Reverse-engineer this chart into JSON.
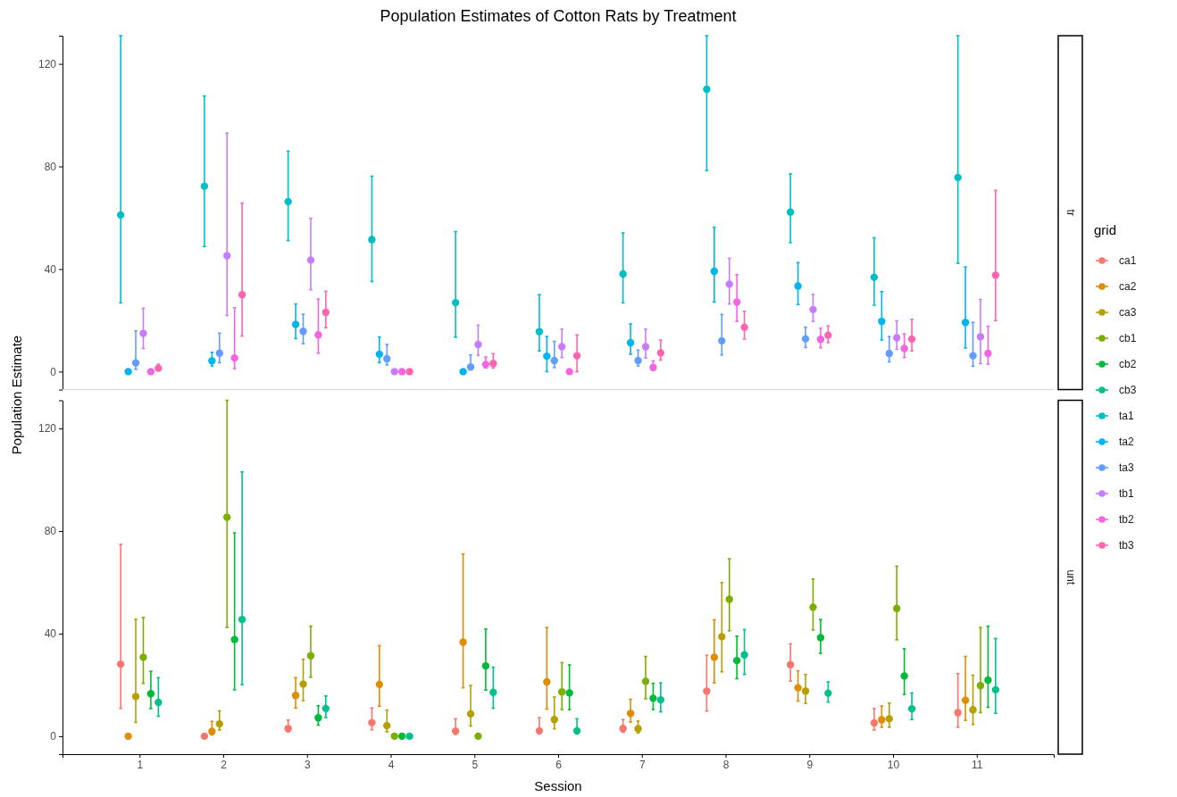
{
  "chart_data": [
    {
      "type": "scatter",
      "title": "Population Estimates of Cotton Rats by Treatment",
      "annotations": [
        "tr"
      ],
      "ylabel": "Population Estimate",
      "legend_title": "grid",
      "legend": "right",
      "marker": "circle",
      "tick_labels": "y",
      "categories": [
        "1",
        "2",
        "3",
        "4",
        "5",
        "6",
        "7",
        "8",
        "9",
        "10",
        "11"
      ],
      "ylim": [
        -7,
        131
      ],
      "yticks": [
        0,
        40,
        80,
        120
      ],
      "series": [
        {
          "name": "ta1",
          "color": "#00bfc4",
          "values": [
            61.1,
            72.3,
            66.3,
            51.5,
            26.9,
            15.6,
            38.1,
            110.1,
            62.2,
            36.8,
            75.7
          ],
          "errors": [
            [
              26.8,
              131
            ],
            [
              48.8,
              107.5
            ],
            [
              51.1,
              86.0
            ],
            [
              35.1,
              76.2
            ],
            [
              13.4,
              54.6
            ],
            [
              8.1,
              30.0
            ],
            [
              26.8,
              54.1
            ],
            [
              78.4,
              131
            ],
            [
              50.3,
              77.1
            ],
            [
              25.9,
              52.2
            ],
            [
              42.2,
              131
            ]
          ]
        },
        {
          "name": "ta2",
          "color": "#00b4f0",
          "values": [
            0,
            4.2,
            18.4,
            6.8,
            0,
            6.0,
            11.3,
            39.1,
            33.4,
            19.6,
            19.2
          ],
          "errors": [
            null,
            [
              2.2,
              7.5
            ],
            [
              12.9,
              26.4
            ],
            [
              3.5,
              13.5
            ],
            null,
            [
              0,
              13.7
            ],
            [
              6.8,
              18.6
            ],
            [
              27.1,
              56.3
            ],
            [
              26.2,
              42.5
            ],
            [
              12.3,
              31.2
            ],
            [
              9.2,
              40.8
            ]
          ]
        },
        {
          "name": "ta3",
          "color": "#619cff",
          "values": [
            3.4,
            7.2,
            15.7,
            5.0,
            1.8,
            4.3,
            4.3,
            12.0,
            12.8,
            7.1,
            6.2
          ],
          "errors": [
            [
              0.9,
              15.9
            ],
            [
              3.5,
              15
            ],
            [
              10.9,
              22.4
            ],
            [
              2.6,
              10.6
            ],
            [
              0.9,
              6.5
            ],
            [
              1.6,
              11.8
            ],
            [
              2.2,
              8.4
            ],
            [
              6.5,
              22.3
            ],
            [
              9.4,
              17.3
            ],
            [
              3.8,
              13.7
            ],
            [
              2.1,
              19.2
            ]
          ]
        },
        {
          "name": "tb1",
          "color": "#c77cff",
          "values": [
            14.9,
            45.2,
            43.5,
            0,
            10.6,
            9.7,
            9.7,
            34.1,
            24.2,
            13.2,
            13.6
          ],
          "errors": [
            [
              9.0,
              24.7
            ],
            [
              21.9,
              93.0
            ],
            [
              31.9,
              59.8
            ],
            null,
            [
              6.3,
              18.1
            ],
            [
              5.5,
              16.6
            ],
            [
              5.3,
              16.6
            ],
            [
              26.4,
              44.2
            ],
            [
              19.6,
              30.1
            ],
            [
              8.7,
              19.8
            ],
            [
              3.1,
              28.1
            ]
          ]
        },
        {
          "name": "tb2",
          "color": "#f564e3",
          "values": [
            0,
            5.3,
            14.3,
            0,
            2.8,
            0,
            1.6,
            27.1,
            12.6,
            9.0,
            7.1
          ],
          "errors": [
            null,
            [
              1.2,
              24.9
            ],
            [
              7.2,
              28.3
            ],
            null,
            [
              1.4,
              5.7
            ],
            null,
            [
              0.5,
              4.2
            ],
            [
              19.6,
              37.8
            ],
            [
              9.3,
              16.9
            ],
            [
              5.5,
              14.7
            ],
            [
              2.9,
              17.7
            ]
          ]
        },
        {
          "name": "tb3",
          "color": "#ff64b0",
          "values": [
            1.3,
            30.0,
            23.1,
            0,
            3.2,
            6.2,
            7.3,
            17.3,
            14.2,
            12.7,
            37.6
          ],
          "errors": [
            [
              0.5,
              2.9
            ],
            [
              13.9,
              65.7
            ],
            [
              17.1,
              31.3
            ],
            null,
            [
              1.4,
              7.0
            ],
            [
              0,
              14.3
            ],
            [
              4.5,
              12.3
            ],
            [
              12.7,
              23.5
            ],
            [
              11.3,
              17.8
            ],
            [
              8.1,
              20.4
            ],
            [
              19.9,
              70.7
            ]
          ]
        }
      ]
    },
    {
      "type": "scatter",
      "annotations": [
        "unt"
      ],
      "xlabel": "Session",
      "legend": "right",
      "marker": "circle",
      "categories": [
        "1",
        "2",
        "3",
        "4",
        "5",
        "6",
        "7",
        "8",
        "9",
        "10",
        "11"
      ],
      "ylim": [
        -7,
        131
      ],
      "yticks": [
        0,
        40,
        80,
        120
      ],
      "series": [
        {
          "name": "ca1",
          "color": "#f8766d",
          "values": [
            28.1,
            0,
            3.0,
            5.3,
            2.0,
            2.1,
            3.0,
            17.6,
            27.9,
            5.2,
            9.2
          ],
          "errors": [
            [
              10.8,
              74.8
            ],
            null,
            [
              1.7,
              6.3
            ],
            [
              2.5,
              11.0
            ],
            [
              0.7,
              6.8
            ],
            [
              0.9,
              7.2
            ],
            [
              1.6,
              6.5
            ],
            [
              9.8,
              31.6
            ],
            [
              21.5,
              36.0
            ],
            [
              2.4,
              10.8
            ],
            [
              3.5,
              24.4
            ]
          ]
        },
        {
          "name": "ca2",
          "color": "#de8c00",
          "values": [
            0,
            1.9,
            15.9,
            20.2,
            36.7,
            21.2,
            8.9,
            30.8,
            18.9,
            6.4,
            14.0
          ],
          "errors": [
            null,
            [
              0.5,
              5.8
            ],
            [
              11.0,
              22.8
            ],
            [
              11.7,
              35.3
            ],
            [
              18.9,
              71.1
            ],
            [
              10.6,
              42.4
            ],
            [
              5.5,
              14.4
            ],
            [
              20.8,
              45.4
            ],
            [
              13.7,
              25.5
            ],
            [
              3.5,
              11.8
            ],
            [
              6.2,
              31.1
            ]
          ]
        },
        {
          "name": "ca3",
          "color": "#b79f00",
          "values": [
            15.5,
            4.8,
            20.3,
            4.1,
            8.7,
            6.5,
            2.9,
            38.8,
            17.6,
            6.8,
            10.3
          ],
          "errors": [
            [
              5.4,
              45.6
            ],
            [
              2.4,
              9.9
            ],
            [
              13.9,
              30.0
            ],
            [
              1.7,
              10.2
            ],
            [
              4.0,
              19.8
            ],
            [
              2.9,
              15.3
            ],
            [
              1.3,
              5.9
            ],
            [
              25.1,
              59.9
            ],
            [
              12.8,
              24.1
            ],
            [
              3.5,
              12.9
            ],
            [
              4.6,
              23.8
            ]
          ]
        },
        {
          "name": "cb1",
          "color": "#7cae00",
          "values": [
            30.8,
            85.4,
            31.4,
            0,
            0,
            17.3,
            21.4,
            53.4,
            50.3,
            49.8,
            19.7
          ],
          "errors": [
            [
              20.6,
              46.3
            ],
            [
              42.4,
              131
            ],
            [
              23.0,
              42.9
            ],
            null,
            null,
            [
              10.4,
              28.7
            ],
            [
              14.6,
              31.1
            ],
            [
              41.1,
              69.2
            ],
            [
              41.4,
              61.3
            ],
            [
              37.6,
              66.3
            ],
            [
              9.2,
              42.4
            ]
          ]
        },
        {
          "name": "cb2",
          "color": "#00ba38",
          "values": [
            16.6,
            37.7,
            7.2,
            0,
            27.4,
            16.9,
            14.8,
            29.5,
            38.4,
            23.5,
            21.9
          ],
          "errors": [
            [
              10.8,
              25.3
            ],
            [
              18.1,
              79.3
            ],
            [
              4.3,
              11.9
            ],
            null,
            [
              18.0,
              41.8
            ],
            [
              10.4,
              27.8
            ],
            [
              10.4,
              20.6
            ],
            [
              22.4,
              39.0
            ],
            [
              32.3,
              45.5
            ],
            [
              16.3,
              34.1
            ],
            [
              11.3,
              42.9
            ]
          ]
        },
        {
          "name": "cb3",
          "color": "#00c08b",
          "values": [
            13.2,
            45.5,
            10.8,
            0,
            17.1,
            2.1,
            14.2,
            31.7,
            16.8,
            10.7,
            18.1
          ],
          "errors": [
            [
              7.8,
              22.8
            ],
            [
              20.1,
              103.1
            ],
            [
              7.3,
              15.7
            ],
            null,
            [
              10.9,
              26.9
            ],
            [
              0.9,
              6.8
            ],
            [
              9.5,
              20.8
            ],
            [
              24.1,
              41.6
            ],
            [
              13.3,
              21.2
            ],
            [
              6.5,
              16.9
            ],
            [
              8.9,
              38.1
            ]
          ]
        }
      ]
    }
  ]
}
